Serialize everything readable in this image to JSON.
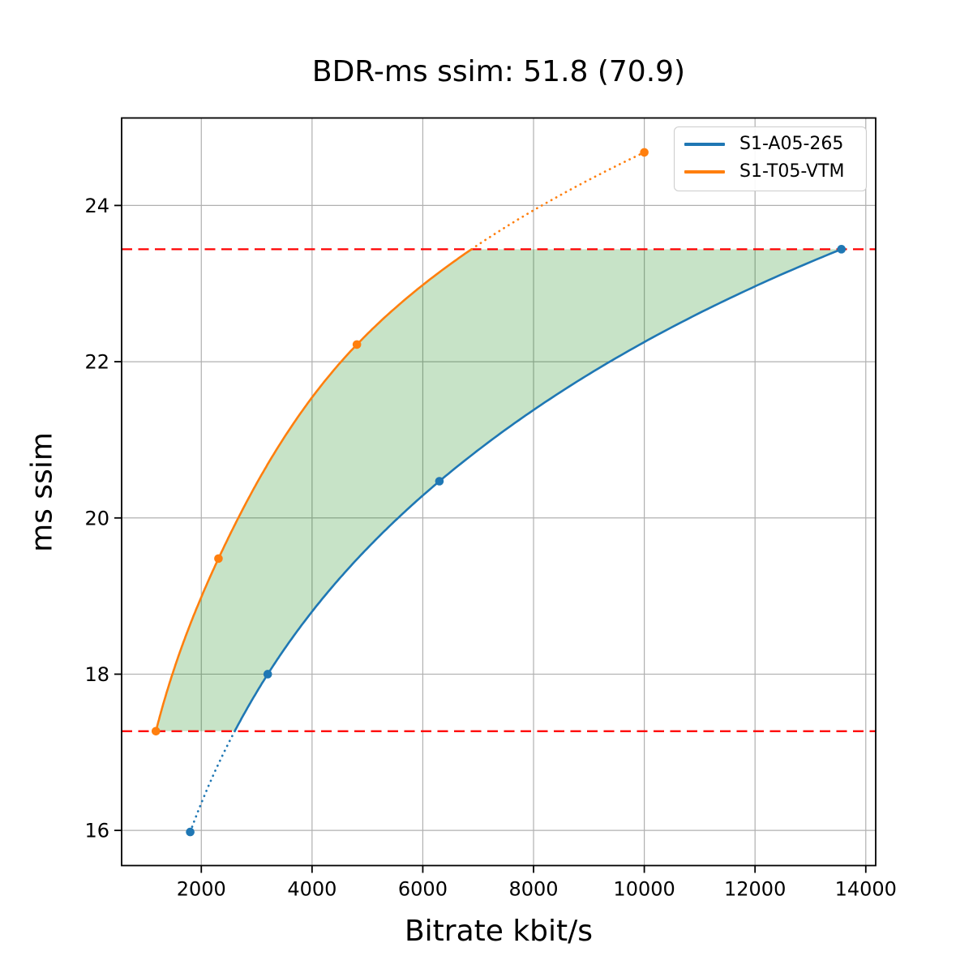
{
  "chart_data": {
    "type": "line",
    "title": "BDR-ms ssim: 51.8 (70.9)",
    "xlabel": "Bitrate kbit/s",
    "ylabel": "ms ssim",
    "xlim": [
      561,
      14179
    ],
    "ylim": [
      15.55,
      25.12
    ],
    "xticks": [
      2000,
      4000,
      6000,
      8000,
      10000,
      12000,
      14000
    ],
    "yticks": [
      16,
      18,
      20,
      22,
      24
    ],
    "grid": true,
    "grid_color": "#b0b0b0",
    "legend_position": "upper right",
    "series": [
      {
        "name": "S1-A05-265",
        "color": "#1f77b4",
        "marker": "circle",
        "x": [
          1800,
          3200,
          6300,
          13560
        ],
        "y": [
          15.98,
          18.0,
          20.47,
          23.44
        ]
      },
      {
        "name": "S1-T05-VTM",
        "color": "#ff7f0e",
        "marker": "circle",
        "x": [
          1180,
          2310,
          4810,
          10000
        ],
        "y": [
          17.27,
          19.48,
          22.22,
          24.68
        ]
      }
    ],
    "overlap_region": {
      "y_low": 17.27,
      "y_high": 23.44,
      "line_color": "#ff0000",
      "line_style": "dashed",
      "fill_color": "#008000",
      "fill_opacity": 0.22,
      "upper_series_index": 1,
      "lower_series_index": 0
    }
  }
}
